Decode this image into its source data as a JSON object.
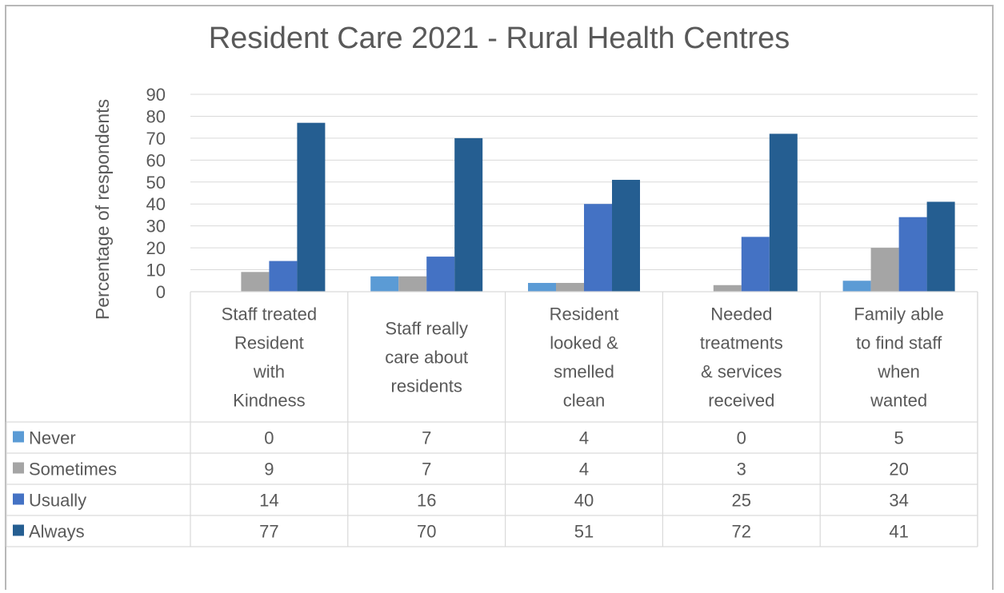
{
  "chart_data": {
    "type": "bar",
    "title": "Resident Care 2021 - Rural Health Centres",
    "xlabel": "",
    "ylabel": "Percentage of respondents",
    "ylim": [
      0,
      90
    ],
    "yticks": [
      0,
      10,
      20,
      30,
      40,
      50,
      60,
      70,
      80,
      90
    ],
    "grid": true,
    "legend": "data-table",
    "categories": [
      [
        "Staff treated",
        "Resident",
        "with",
        "Kindness"
      ],
      [
        "Staff really",
        "care about",
        "residents"
      ],
      [
        "Resident",
        "looked &",
        "smelled",
        "clean"
      ],
      [
        "Needed",
        "treatments",
        "& services",
        "received"
      ],
      [
        "Family able",
        "to find staff",
        "when",
        "wanted"
      ]
    ],
    "series": [
      {
        "name": "Never",
        "color": "#5b9bd5",
        "values": [
          0,
          7,
          4,
          0,
          5
        ]
      },
      {
        "name": "Sometimes",
        "color": "#a5a5a5",
        "values": [
          9,
          7,
          4,
          3,
          20
        ]
      },
      {
        "name": "Usually",
        "color": "#4472c4",
        "values": [
          14,
          16,
          40,
          25,
          34
        ]
      },
      {
        "name": "Always",
        "color": "#255e91",
        "values": [
          77,
          70,
          51,
          72,
          41
        ]
      }
    ]
  }
}
